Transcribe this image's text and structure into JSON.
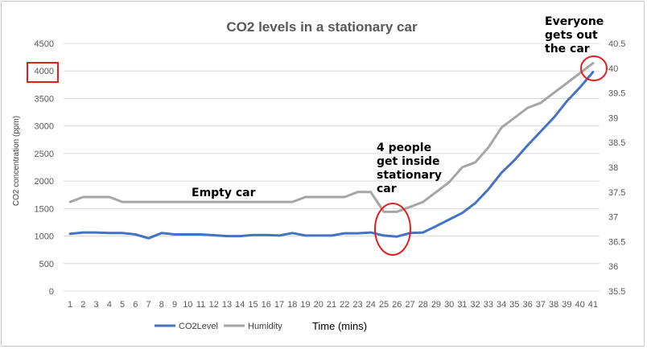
{
  "chart_data": {
    "type": "line",
    "title": "CO2 levels in a stationary car",
    "xlabel": "Time (mins)",
    "ylabel": "CO2 concentration (ppm)",
    "y2label": "",
    "x": [
      1,
      2,
      3,
      4,
      5,
      6,
      7,
      8,
      9,
      10,
      11,
      12,
      13,
      14,
      15,
      16,
      17,
      18,
      19,
      20,
      21,
      22,
      23,
      24,
      25,
      26,
      27,
      28,
      29,
      30,
      31,
      32,
      33,
      34,
      35,
      36,
      37,
      38,
      39,
      40,
      41
    ],
    "ylim": [
      0,
      4500
    ],
    "y2lim": [
      35.5,
      40.5
    ],
    "yticks": [
      "0",
      "500",
      "1000",
      "1500",
      "2000",
      "2500",
      "3000",
      "3500",
      "4000",
      "4500"
    ],
    "y2ticks": [
      "35.5",
      "36",
      "36.5",
      "37",
      "37.5",
      "38",
      "38.5",
      "39",
      "39.5",
      "40",
      "40.5"
    ],
    "grid": true,
    "legend_position": "bottom",
    "series": [
      {
        "name": "CO2Level",
        "axis": "left",
        "color": "#4472c4",
        "values": [
          1040,
          1065,
          1065,
          1055,
          1055,
          1030,
          960,
          1055,
          1030,
          1030,
          1030,
          1015,
          1000,
          1000,
          1020,
          1020,
          1010,
          1055,
          1010,
          1010,
          1010,
          1050,
          1050,
          1065,
          1010,
          990,
          1055,
          1065,
          1180,
          1300,
          1420,
          1600,
          1850,
          2150,
          2380,
          2650,
          2900,
          3150,
          3450,
          3700,
          3980
        ]
      },
      {
        "name": "Humidity",
        "axis": "right",
        "color": "#a5a5a5",
        "values": [
          37.3,
          37.4,
          37.4,
          37.4,
          37.3,
          37.3,
          37.3,
          37.3,
          37.3,
          37.3,
          37.3,
          37.3,
          37.3,
          37.3,
          37.3,
          37.3,
          37.3,
          37.3,
          37.4,
          37.4,
          37.4,
          37.4,
          37.5,
          37.5,
          37.1,
          37.1,
          37.2,
          37.3,
          37.5,
          37.7,
          38.0,
          38.1,
          38.4,
          38.8,
          39.0,
          39.2,
          39.3,
          39.5,
          39.7,
          39.9,
          40.1
        ]
      }
    ],
    "annotations": [
      {
        "lines": [
          "Empty car"
        ]
      },
      {
        "lines": [
          "4 people",
          "get inside",
          "stationary",
          "car"
        ]
      },
      {
        "lines": [
          "Everyone",
          "gets out",
          "the car"
        ]
      }
    ],
    "highlight_tick": "4000"
  }
}
